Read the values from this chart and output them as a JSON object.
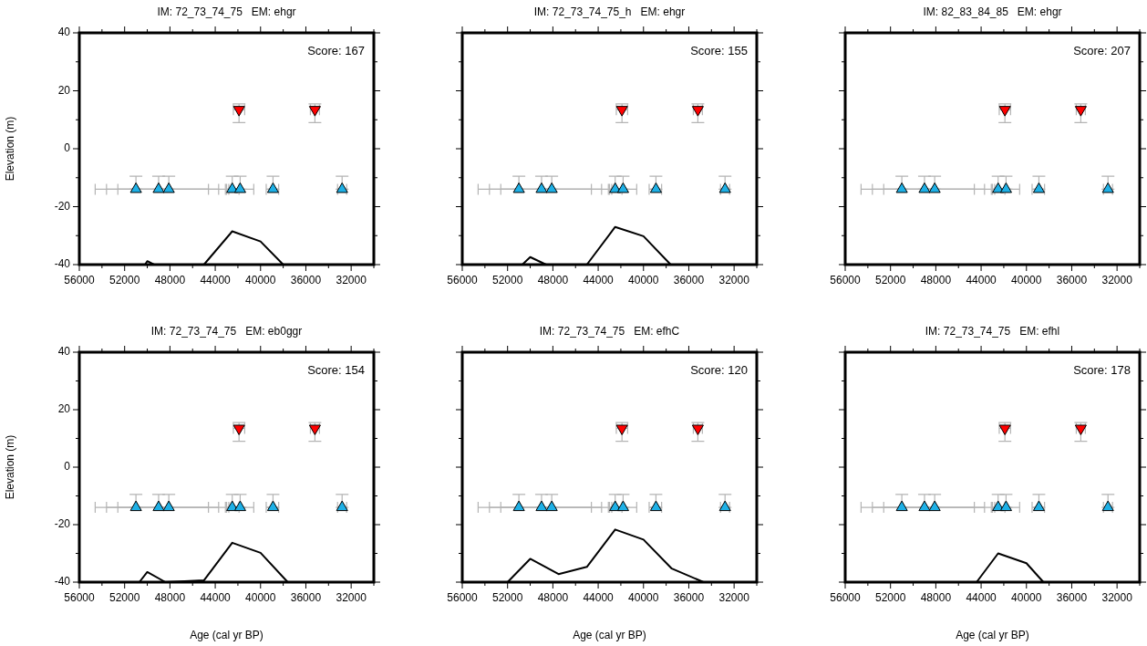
{
  "chart_data": [
    {
      "type": "scatter",
      "title": "IM: 72_73_74_75   EM: ehgr",
      "ylabel": "Elevation (m)",
      "annotations": [
        "Score: 167"
      ],
      "xlim": [
        56000,
        30000
      ],
      "ylim": [
        -40,
        40
      ],
      "xticks": [
        56000,
        {
          "value": 54000,
          "label": null
        },
        52000,
        {
          "value": 50000,
          "label": null
        },
        48000,
        {
          "value": 46000,
          "label": null
        },
        44000,
        {
          "value": 42000,
          "label": null
        },
        40000,
        {
          "value": 38000,
          "label": null
        },
        36000,
        {
          "value": 34000,
          "label": null
        },
        32000,
        {
          "value": 30000,
          "label": null
        }
      ],
      "yticks": [
        -40,
        {
          "value": -30,
          "label": null
        },
        -20,
        {
          "value": -10,
          "label": null
        },
        0,
        {
          "value": 10,
          "label": null
        },
        20,
        {
          "value": 30,
          "label": null
        },
        40
      ],
      "series": [
        {
          "type": "line",
          "color": "#000000",
          "x": [
            50200,
            50000,
            49400,
            45000,
            42500,
            40000,
            38000
          ],
          "values": [
            -40,
            -38.8,
            -40,
            -40,
            -28.5,
            -32,
            -40
          ]
        },
        {
          "type": "scatter",
          "color": "#1eb0e6",
          "marker": "triangle",
          "x": [
            51000,
            49000,
            48100,
            42500,
            41800,
            38900,
            32800
          ],
          "values": [
            -14,
            -14,
            -14,
            -14,
            -14,
            -14,
            -14
          ],
          "errors": [
            [
              -14,
              -9.5
            ],
            [
              -14,
              -9.5
            ],
            [
              -14,
              -9.5
            ],
            [
              -14,
              -9.5
            ],
            [
              -14,
              -9.5
            ],
            [
              -14,
              -9.5
            ],
            [
              -14,
              -9.5
            ]
          ],
          "xerrors": [
            [
              44600,
              54600
            ],
            [
              43700,
              53600
            ],
            [
              43100,
              52600
            ],
            [
              41900,
              43000
            ],
            [
              40600,
              42800
            ],
            [
              38400,
              39500
            ],
            [
              32400,
              33200
            ]
          ]
        },
        {
          "type": "scatter",
          "color": "#ff0000",
          "marker": "triangle-down",
          "x": [
            41900,
            35200
          ],
          "values": [
            13.5,
            13.5
          ],
          "errors": [
            [
              9,
              15.5
            ],
            [
              9,
              15.5
            ]
          ],
          "xerrors": [
            [
              41400,
              42400
            ],
            [
              34800,
              35600
            ]
          ]
        }
      ]
    },
    {
      "type": "scatter",
      "title": "IM: 72_73_74_75_h   EM: ehgr",
      "annotations": [
        "Score: 155"
      ],
      "xlim": [
        56000,
        30000
      ],
      "ylim": [
        -40,
        40
      ],
      "tick_labels": "x",
      "xticks": [
        56000,
        {
          "value": 54000,
          "label": null
        },
        52000,
        {
          "value": 50000,
          "label": null
        },
        48000,
        {
          "value": 46000,
          "label": null
        },
        44000,
        {
          "value": 42000,
          "label": null
        },
        40000,
        {
          "value": 38000,
          "label": null
        },
        36000,
        {
          "value": 34000,
          "label": null
        },
        32000,
        {
          "value": 30000,
          "label": null
        }
      ],
      "yticks": [
        -40,
        {
          "value": -30,
          "label": null
        },
        -20,
        {
          "value": -10,
          "label": null
        },
        0,
        {
          "value": 10,
          "label": null
        },
        20,
        {
          "value": 30,
          "label": null
        },
        40
      ],
      "series": [
        {
          "type": "line",
          "color": "#000000",
          "x": [
            50700,
            50000,
            48600,
            45000,
            42500,
            40000,
            37600
          ],
          "values": [
            -40,
            -37.4,
            -40,
            -40,
            -27,
            -30.2,
            -40
          ]
        },
        {
          "type": "scatter",
          "color": "#1eb0e6",
          "marker": "triangle",
          "x": [
            51000,
            49000,
            48100,
            42500,
            41800,
            38900,
            32800
          ],
          "values": [
            -14,
            -14,
            -14,
            -14,
            -14,
            -14,
            -14
          ],
          "errors": [
            [
              -14,
              -9.5
            ],
            [
              -14,
              -9.5
            ],
            [
              -14,
              -9.5
            ],
            [
              -14,
              -9.5
            ],
            [
              -14,
              -9.5
            ],
            [
              -14,
              -9.5
            ],
            [
              -14,
              -9.5
            ]
          ],
          "xerrors": [
            [
              44600,
              54600
            ],
            [
              43700,
              53600
            ],
            [
              43100,
              52600
            ],
            [
              41900,
              43000
            ],
            [
              40600,
              42800
            ],
            [
              38400,
              39500
            ],
            [
              32400,
              33200
            ]
          ]
        },
        {
          "type": "scatter",
          "color": "#ff0000",
          "marker": "triangle-down",
          "x": [
            41900,
            35200
          ],
          "values": [
            13.5,
            13.5
          ],
          "errors": [
            [
              9,
              15.5
            ],
            [
              9,
              15.5
            ]
          ],
          "xerrors": [
            [
              41400,
              42400
            ],
            [
              34800,
              35600
            ]
          ]
        }
      ]
    },
    {
      "type": "scatter",
      "title": "IM: 82_83_84_85   EM: ehgr",
      "annotations": [
        "Score: 207"
      ],
      "xlim": [
        56000,
        30000
      ],
      "ylim": [
        -40,
        40
      ],
      "tick_labels": "x",
      "xticks": [
        56000,
        {
          "value": 54000,
          "label": null
        },
        52000,
        {
          "value": 50000,
          "label": null
        },
        48000,
        {
          "value": 46000,
          "label": null
        },
        44000,
        {
          "value": 42000,
          "label": null
        },
        40000,
        {
          "value": 38000,
          "label": null
        },
        36000,
        {
          "value": 34000,
          "label": null
        },
        32000,
        {
          "value": 30000,
          "label": null
        }
      ],
      "yticks": [
        -40,
        {
          "value": -30,
          "label": null
        },
        -20,
        {
          "value": -10,
          "label": null
        },
        0,
        {
          "value": 10,
          "label": null
        },
        20,
        {
          "value": 30,
          "label": null
        },
        40
      ],
      "series": [
        {
          "type": "scatter",
          "color": "#1eb0e6",
          "marker": "triangle",
          "x": [
            51000,
            49000,
            48100,
            42500,
            41800,
            38900,
            32800
          ],
          "values": [
            -14,
            -14,
            -14,
            -14,
            -14,
            -14,
            -14
          ],
          "errors": [
            [
              -14,
              -9.5
            ],
            [
              -14,
              -9.5
            ],
            [
              -14,
              -9.5
            ],
            [
              -14,
              -9.5
            ],
            [
              -14,
              -9.5
            ],
            [
              -14,
              -9.5
            ],
            [
              -14,
              -9.5
            ]
          ],
          "xerrors": [
            [
              44600,
              54600
            ],
            [
              43700,
              53600
            ],
            [
              43100,
              52600
            ],
            [
              41900,
              43000
            ],
            [
              40600,
              42800
            ],
            [
              38400,
              39500
            ],
            [
              32400,
              33200
            ]
          ]
        },
        {
          "type": "scatter",
          "color": "#ff0000",
          "marker": "triangle-down",
          "x": [
            41900,
            35200
          ],
          "values": [
            13.5,
            13.5
          ],
          "errors": [
            [
              9,
              15.5
            ],
            [
              9,
              15.5
            ]
          ],
          "xerrors": [
            [
              41400,
              42400
            ],
            [
              34800,
              35600
            ]
          ]
        }
      ]
    },
    {
      "type": "scatter",
      "title": "IM: 72_73_74_75   EM: eb0ggr",
      "xlabel": "Age (cal yr BP)",
      "ylabel": "Elevation (m)",
      "annotations": [
        "Score: 154"
      ],
      "xlim": [
        56000,
        30000
      ],
      "ylim": [
        -40,
        40
      ],
      "xticks": [
        56000,
        {
          "value": 54000,
          "label": null
        },
        52000,
        {
          "value": 50000,
          "label": null
        },
        48000,
        {
          "value": 46000,
          "label": null
        },
        44000,
        {
          "value": 42000,
          "label": null
        },
        40000,
        {
          "value": 38000,
          "label": null
        },
        36000,
        {
          "value": 34000,
          "label": null
        },
        32000,
        {
          "value": 30000,
          "label": null
        }
      ],
      "yticks": [
        -40,
        {
          "value": -30,
          "label": null
        },
        -20,
        {
          "value": -10,
          "label": null
        },
        0,
        {
          "value": 10,
          "label": null
        },
        20,
        {
          "value": 30,
          "label": null
        },
        40
      ],
      "series": [
        {
          "type": "line",
          "color": "#000000",
          "x": [
            50700,
            50000,
            48400,
            45000,
            42500,
            40000,
            37600
          ],
          "values": [
            -40,
            -36.5,
            -40,
            -39.4,
            -26.3,
            -29.8,
            -40
          ]
        },
        {
          "type": "scatter",
          "color": "#1eb0e6",
          "marker": "triangle",
          "x": [
            51000,
            49000,
            48100,
            42500,
            41800,
            38900,
            32800
          ],
          "values": [
            -14,
            -14,
            -14,
            -14,
            -14,
            -14,
            -14
          ],
          "errors": [
            [
              -14,
              -9.5
            ],
            [
              -14,
              -9.5
            ],
            [
              -14,
              -9.5
            ],
            [
              -14,
              -9.5
            ],
            [
              -14,
              -9.5
            ],
            [
              -14,
              -9.5
            ],
            [
              -14,
              -9.5
            ]
          ],
          "xerrors": [
            [
              44600,
              54600
            ],
            [
              43700,
              53600
            ],
            [
              43100,
              52600
            ],
            [
              41900,
              43000
            ],
            [
              40600,
              42800
            ],
            [
              38400,
              39500
            ],
            [
              32400,
              33200
            ]
          ]
        },
        {
          "type": "scatter",
          "color": "#ff0000",
          "marker": "triangle-down",
          "x": [
            41900,
            35200
          ],
          "values": [
            13.5,
            13.5
          ],
          "errors": [
            [
              9,
              15.5
            ],
            [
              9,
              15.5
            ]
          ],
          "xerrors": [
            [
              41400,
              42400
            ],
            [
              34800,
              35600
            ]
          ]
        }
      ]
    },
    {
      "type": "scatter",
      "title": "IM: 72_73_74_75   EM: efhC",
      "xlabel": "Age (cal yr BP)",
      "annotations": [
        "Score: 120"
      ],
      "xlim": [
        56000,
        30000
      ],
      "ylim": [
        -40,
        40
      ],
      "tick_labels": "x",
      "xticks": [
        56000,
        {
          "value": 54000,
          "label": null
        },
        52000,
        {
          "value": 50000,
          "label": null
        },
        48000,
        {
          "value": 46000,
          "label": null
        },
        44000,
        {
          "value": 42000,
          "label": null
        },
        40000,
        {
          "value": 38000,
          "label": null
        },
        36000,
        {
          "value": 34000,
          "label": null
        },
        32000,
        {
          "value": 30000,
          "label": null
        }
      ],
      "yticks": [
        -40,
        {
          "value": -30,
          "label": null
        },
        -20,
        {
          "value": -10,
          "label": null
        },
        0,
        {
          "value": 10,
          "label": null
        },
        20,
        {
          "value": 30,
          "label": null
        },
        40
      ],
      "series": [
        {
          "type": "line",
          "color": "#000000",
          "x": [
            52000,
            50000,
            47500,
            45000,
            42500,
            40000,
            37500,
            34700
          ],
          "values": [
            -40,
            -31.9,
            -37.2,
            -34.7,
            -21.7,
            -25.2,
            -35.3,
            -40
          ]
        },
        {
          "type": "scatter",
          "color": "#1eb0e6",
          "marker": "triangle",
          "x": [
            51000,
            49000,
            48100,
            42500,
            41800,
            38900,
            32800
          ],
          "values": [
            -14,
            -14,
            -14,
            -14,
            -14,
            -14,
            -14
          ],
          "errors": [
            [
              -14,
              -9.5
            ],
            [
              -14,
              -9.5
            ],
            [
              -14,
              -9.5
            ],
            [
              -14,
              -9.5
            ],
            [
              -14,
              -9.5
            ],
            [
              -14,
              -9.5
            ],
            [
              -14,
              -9.5
            ]
          ],
          "xerrors": [
            [
              44600,
              54600
            ],
            [
              43700,
              53600
            ],
            [
              43100,
              52600
            ],
            [
              41900,
              43000
            ],
            [
              40600,
              42800
            ],
            [
              38400,
              39500
            ],
            [
              32400,
              33200
            ]
          ]
        },
        {
          "type": "scatter",
          "color": "#ff0000",
          "marker": "triangle-down",
          "x": [
            41900,
            35200
          ],
          "values": [
            13.5,
            13.5
          ],
          "errors": [
            [
              9,
              15.5
            ],
            [
              9,
              15.5
            ]
          ],
          "xerrors": [
            [
              41400,
              42400
            ],
            [
              34800,
              35600
            ]
          ]
        }
      ]
    },
    {
      "type": "scatter",
      "title": "IM: 72_73_74_75   EM: efhl",
      "xlabel": "Age (cal yr BP)",
      "annotations": [
        "Score: 178"
      ],
      "xlim": [
        56000,
        30000
      ],
      "ylim": [
        -40,
        40
      ],
      "tick_labels": "x",
      "xticks": [
        56000,
        {
          "value": 54000,
          "label": null
        },
        52000,
        {
          "value": 50000,
          "label": null
        },
        48000,
        {
          "value": 46000,
          "label": null
        },
        44000,
        {
          "value": 42000,
          "label": null
        },
        40000,
        {
          "value": 38000,
          "label": null
        },
        36000,
        {
          "value": 34000,
          "label": null
        },
        32000,
        {
          "value": 30000,
          "label": null
        }
      ],
      "yticks": [
        -40,
        {
          "value": -30,
          "label": null
        },
        -20,
        {
          "value": -10,
          "label": null
        },
        0,
        {
          "value": 10,
          "label": null
        },
        20,
        {
          "value": 30,
          "label": null
        },
        40
      ],
      "series": [
        {
          "type": "line",
          "color": "#000000",
          "x": [
            44400,
            42500,
            40000,
            38500
          ],
          "values": [
            -40,
            -30,
            -33.4,
            -40
          ]
        },
        {
          "type": "scatter",
          "color": "#1eb0e6",
          "marker": "triangle",
          "x": [
            51000,
            49000,
            48100,
            42500,
            41800,
            38900,
            32800
          ],
          "values": [
            -14,
            -14,
            -14,
            -14,
            -14,
            -14,
            -14
          ],
          "errors": [
            [
              -14,
              -9.5
            ],
            [
              -14,
              -9.5
            ],
            [
              -14,
              -9.5
            ],
            [
              -14,
              -9.5
            ],
            [
              -14,
              -9.5
            ],
            [
              -14,
              -9.5
            ],
            [
              -14,
              -9.5
            ]
          ],
          "xerrors": [
            [
              44600,
              54600
            ],
            [
              43700,
              53600
            ],
            [
              43100,
              52600
            ],
            [
              41900,
              43000
            ],
            [
              40600,
              42800
            ],
            [
              38400,
              39500
            ],
            [
              32400,
              33200
            ]
          ]
        },
        {
          "type": "scatter",
          "color": "#ff0000",
          "marker": "triangle-down",
          "x": [
            41900,
            35200
          ],
          "values": [
            13.5,
            13.5
          ],
          "errors": [
            [
              9,
              15.5
            ],
            [
              9,
              15.5
            ]
          ],
          "xerrors": [
            [
              41400,
              42400
            ],
            [
              34800,
              35600
            ]
          ]
        }
      ]
    }
  ]
}
